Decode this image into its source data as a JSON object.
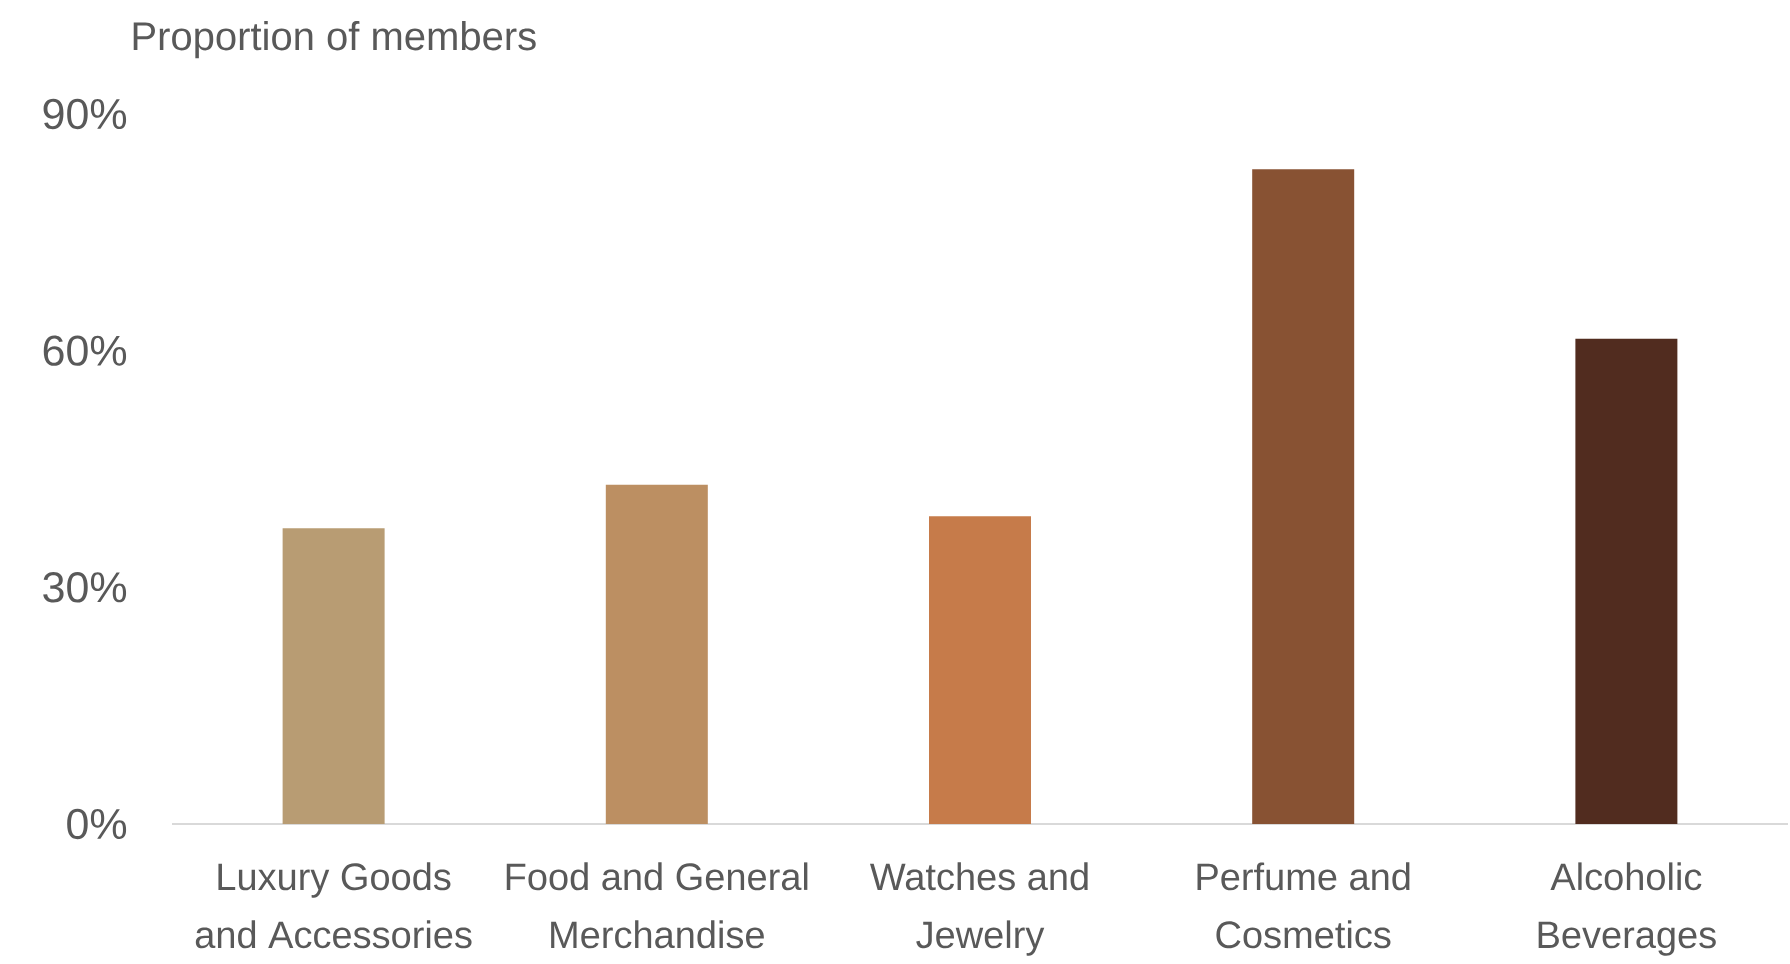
{
  "chart_data": {
    "type": "bar",
    "ylabel": "Proportion of members",
    "categories": [
      "Luxury Goods and Accessories",
      "Food and General Merchandise",
      "Watches and Jewelry",
      "Perfume and Cosmetics",
      "Alcoholic Beverages"
    ],
    "values": [
      37.5,
      43,
      39,
      83,
      61.5
    ],
    "colors": [
      "#b89c73",
      "#bc8f62",
      "#c67b4a",
      "#885233",
      "#512c1f"
    ],
    "ylim": [
      0,
      90
    ],
    "yticks": [
      {
        "value": 0,
        "label": "0%"
      },
      {
        "value": 30,
        "label": "30%"
      },
      {
        "value": 60,
        "label": "60%"
      },
      {
        "value": 90,
        "label": "90%"
      }
    ]
  }
}
